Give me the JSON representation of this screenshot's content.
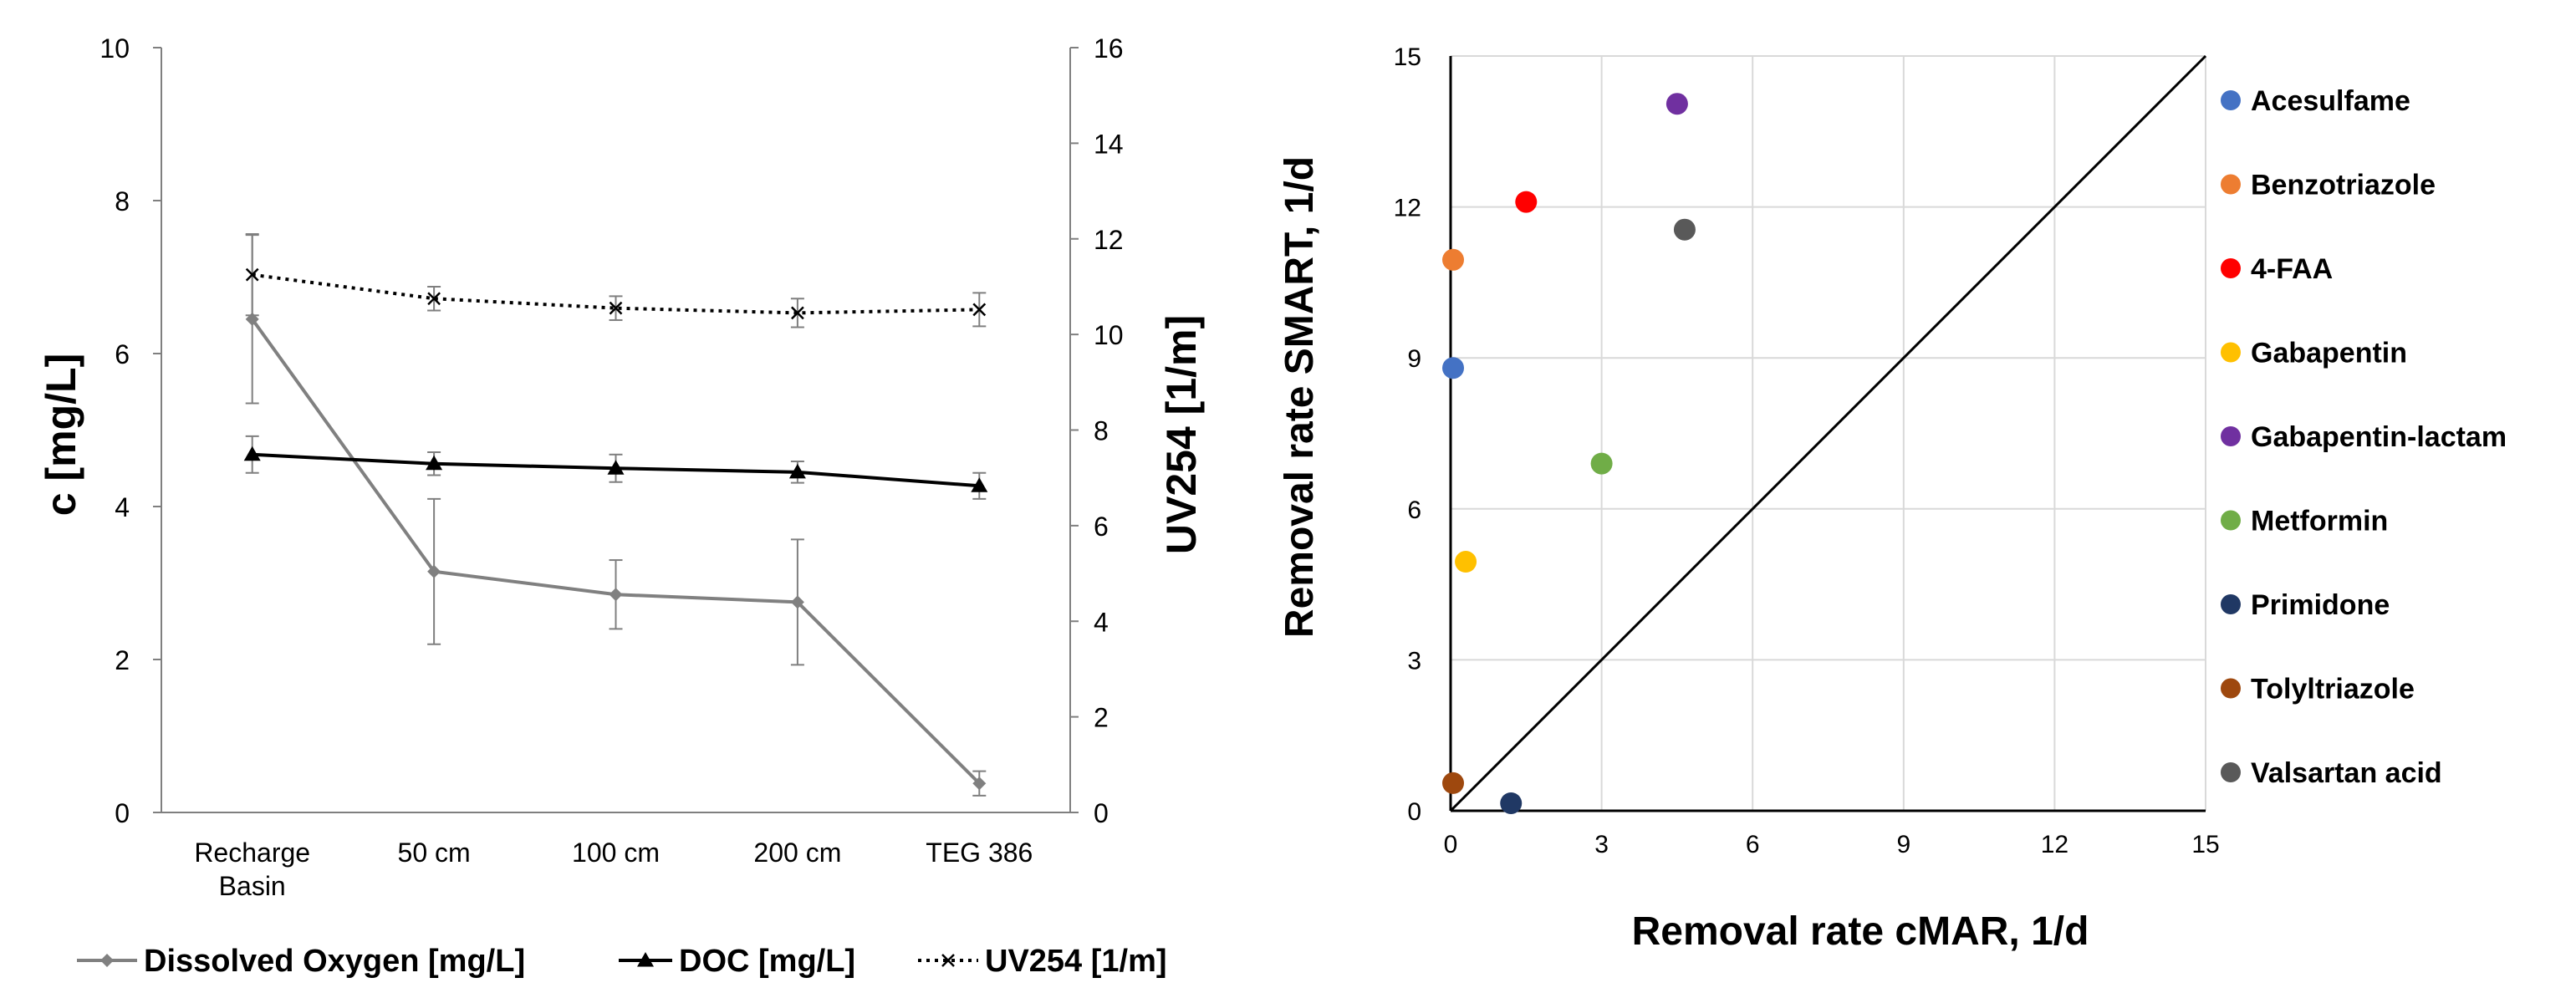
{
  "chart_data": [
    {
      "type": "line",
      "categories": [
        "Recharge Basin",
        "50 cm",
        "100 cm",
        "200 cm",
        "TEG 386"
      ],
      "category_lines": [
        [
          "Recharge",
          "Basin"
        ],
        [
          "50 cm"
        ],
        [
          "100 cm"
        ],
        [
          "200 cm"
        ],
        [
          "TEG 386"
        ]
      ],
      "ylabel": "c [mg/L]",
      "ylim": [
        0,
        10
      ],
      "yticks": [
        0,
        2,
        4,
        6,
        8,
        10
      ],
      "y2label": "UV254 [1/m]",
      "y2lim": [
        0,
        16
      ],
      "y2ticks": [
        0,
        2,
        4,
        6,
        8,
        10,
        12,
        14,
        16
      ],
      "grid": false,
      "legend_position": "bottom",
      "series": [
        {
          "name": "Dissolved Oxygen [mg/L]",
          "axis": "left",
          "color": "#808080",
          "marker": "diamond",
          "line": "solid",
          "values": [
            6.45,
            3.15,
            2.85,
            2.75,
            0.38
          ],
          "errors": [
            1.1,
            0.95,
            0.45,
            0.82,
            0.16
          ]
        },
        {
          "name": "DOC [mg/L]",
          "axis": "left",
          "color": "#000000",
          "marker": "triangle",
          "line": "solid",
          "values": [
            4.68,
            4.56,
            4.5,
            4.45,
            4.27
          ],
          "errors": [
            0.24,
            0.15,
            0.18,
            0.14,
            0.17
          ]
        },
        {
          "name": "UV254 [1/m]",
          "axis": "right",
          "color": "#000000",
          "marker": "x",
          "line": "dotted",
          "values": [
            11.25,
            10.75,
            10.55,
            10.45,
            10.52
          ],
          "errors": [
            0.85,
            0.25,
            0.25,
            0.3,
            0.35
          ]
        }
      ]
    },
    {
      "type": "scatter",
      "xlabel": "Removal rate cMAR, 1/d",
      "ylabel": "Removal rate  SMART, 1/d",
      "xlim": [
        0,
        15
      ],
      "ylim": [
        0,
        15
      ],
      "xticks": [
        0,
        3,
        6,
        9,
        12,
        15
      ],
      "yticks": [
        0,
        3,
        6,
        9,
        12,
        15
      ],
      "grid": true,
      "reference_line": "y = x",
      "legend_position": "right",
      "series": [
        {
          "name": "Acesulfame",
          "color": "#4472C4",
          "x": 0.05,
          "y": 8.8
        },
        {
          "name": "Benzotriazole",
          "color": "#ED7D31",
          "x": 0.05,
          "y": 10.95
        },
        {
          "name": "4-FAA",
          "color": "#FF0000",
          "x": 1.5,
          "y": 12.1
        },
        {
          "name": "Gabapentin",
          "color": "#FFC000",
          "x": 0.3,
          "y": 4.95
        },
        {
          "name": "Gabapentin-lactam",
          "color": "#7030A0",
          "x": 4.5,
          "y": 14.05
        },
        {
          "name": "Metformin",
          "color": "#70AD47",
          "x": 3.0,
          "y": 6.9
        },
        {
          "name": "Primidone",
          "color": "#203864",
          "x": 1.2,
          "y": 0.15
        },
        {
          "name": "Tolyltriazole",
          "color": "#9E480E",
          "x": 0.05,
          "y": 0.55
        },
        {
          "name": "Valsartan acid",
          "color": "#595959",
          "x": 4.65,
          "y": 11.55
        }
      ]
    }
  ]
}
